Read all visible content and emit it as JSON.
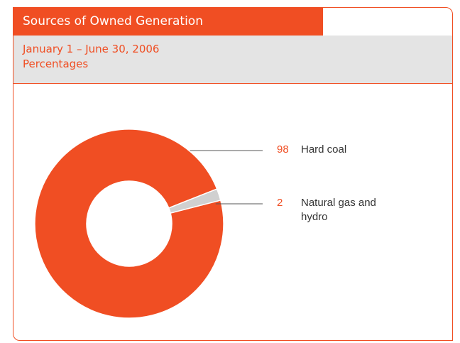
{
  "chart_data": {
    "type": "pie",
    "title": "Sources of Owned Generation",
    "subtitle": "January 1 – June 30, 2006",
    "unit_label": "Percentages",
    "categories": [
      "Hard coal",
      "Natural gas and hydro"
    ],
    "values": [
      98,
      2
    ],
    "colors": [
      "#f04e23",
      "#d0d0d0"
    ],
    "donut": true
  }
}
